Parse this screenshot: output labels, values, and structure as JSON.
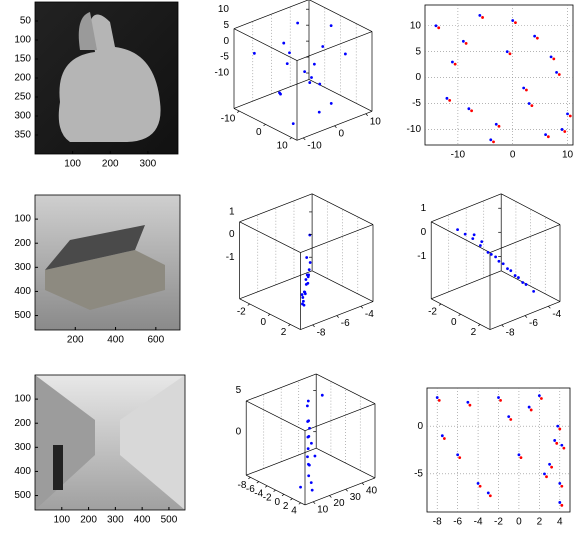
{
  "chart_data": [
    {
      "type": "image",
      "xlim": [
        0,
        380
      ],
      "ylim": [
        0,
        400
      ],
      "xticks": [
        100,
        200,
        300
      ],
      "yticks": [
        50,
        100,
        150,
        200,
        250,
        300,
        350
      ]
    },
    {
      "type": "scatter3d",
      "xlim": [
        -12,
        12
      ],
      "ylim": [
        -12,
        12
      ],
      "zlim": [
        -12,
        13
      ],
      "xticks": [
        -10,
        0,
        10
      ],
      "yticks": [
        -10,
        0,
        10
      ],
      "zticks": [
        -10,
        -5,
        0,
        5,
        10
      ],
      "color": "#0000ff",
      "x": [
        -8,
        -5,
        -2,
        1,
        4,
        7,
        9,
        -6,
        -3,
        0,
        3,
        6,
        -9,
        -4,
        2,
        5,
        8,
        -1
      ],
      "y": [
        5,
        -3,
        8,
        -7,
        2,
        -9,
        6,
        0,
        -5,
        9,
        -2,
        4,
        -8,
        7,
        -6,
        1,
        -4,
        3
      ],
      "z": [
        10,
        -8,
        4,
        12,
        -3,
        -10,
        7,
        0,
        -6,
        11,
        2,
        -9,
        5,
        -2,
        9,
        -11,
        3,
        -5
      ]
    },
    {
      "type": "scatter",
      "xlim": [
        -16,
        11
      ],
      "ylim": [
        -13,
        14
      ],
      "xticks": [
        -10,
        0,
        10
      ],
      "yticks": [
        -10,
        -5,
        0,
        5,
        10
      ],
      "grid": true,
      "series": [
        {
          "color": "#0000ff",
          "x": [
            -14,
            -11,
            -8,
            -6,
            -3,
            -1,
            2,
            4,
            6,
            8,
            10,
            -12,
            -9,
            -4,
            0,
            3,
            7,
            9
          ],
          "y": [
            10,
            3,
            -6,
            12,
            -9,
            5,
            -2,
            8,
            -11,
            1,
            -7,
            -4,
            7,
            -12,
            11,
            -5,
            4,
            -10
          ]
        },
        {
          "color": "#ff0000",
          "x": [
            -13.5,
            -10.5,
            -7.5,
            -5.5,
            -2.5,
            -0.5,
            2.5,
            4.5,
            6.5,
            8.5,
            10.5,
            -11.5,
            -8.5,
            -3.5,
            0.5,
            3.5,
            7.5,
            9.5
          ],
          "y": [
            9.6,
            2.6,
            -6.4,
            11.6,
            -9.4,
            4.6,
            -2.4,
            7.6,
            -11.4,
            0.6,
            -7.4,
            -4.4,
            6.6,
            -12.4,
            10.6,
            -5.4,
            3.6,
            -10.4
          ]
        }
      ]
    },
    {
      "type": "image",
      "xlim": [
        0,
        720
      ],
      "ylim": [
        0,
        560
      ],
      "xticks": [
        200,
        400,
        600
      ],
      "yticks": [
        100,
        200,
        300,
        400,
        500
      ]
    },
    {
      "type": "scatter3d",
      "xlim": [
        -3,
        3
      ],
      "ylim": [
        -9,
        -3
      ],
      "zlim": [
        -1.6,
        1.8
      ],
      "xticks": [
        -2,
        0,
        2
      ],
      "yticks": [
        -8,
        -6,
        -4
      ],
      "zticks": [
        -1,
        0,
        1
      ],
      "color": "#0000ff",
      "x": [
        -2,
        -1.5,
        -1,
        -0.5,
        0,
        0.5,
        1,
        1.5,
        2,
        -1.8,
        -0.8,
        0.2,
        1.2,
        2.2,
        -1.2,
        0.8,
        1.8,
        -0.2
      ],
      "y": [
        -4,
        -4.5,
        -5,
        -5.5,
        -6,
        -6.5,
        -7,
        -7.5,
        -8,
        -4.2,
        -5.2,
        -6.2,
        -7.2,
        -8.2,
        -4.8,
        -6.8,
        -7.8,
        -5.8
      ],
      "z": [
        -0.8,
        -0.9,
        -1,
        -0.7,
        -0.9,
        -1.1,
        -0.8,
        -1,
        -0.9,
        0.5,
        -1.2,
        -0.6,
        -1.3,
        -0.4,
        -1,
        -0.9,
        -0.7,
        0.2
      ]
    },
    {
      "type": "scatter3d",
      "xlim": [
        -3,
        3
      ],
      "ylim": [
        -9,
        -3
      ],
      "zlim": [
        -1.6,
        1.6
      ],
      "xticks": [
        -2,
        0,
        2
      ],
      "yticks": [
        -8,
        -6,
        -4
      ],
      "zticks": [
        -1,
        0,
        1
      ],
      "color": "#0000ff",
      "x": [
        -1.5,
        -1.2,
        -0.9,
        -0.6,
        -0.3,
        0,
        0.3,
        0.6,
        0.9,
        1.2,
        1.5,
        -1,
        -0.2,
        0.5,
        1.1,
        -0.7,
        0.1,
        0.8
      ],
      "y": [
        -8,
        -7.6,
        -7.2,
        -6.8,
        -6.4,
        -6,
        -5.6,
        -5.2,
        -4.8,
        -4.4,
        -4,
        -7,
        -6.2,
        -5.4,
        -4.6,
        -6.6,
        -5.8,
        -5
      ],
      "z": [
        1.4,
        1.2,
        1,
        0.7,
        0.4,
        0.2,
        -0.1,
        -0.4,
        -0.7,
        -1,
        -1.3,
        1.1,
        0.3,
        -0.3,
        -0.9,
        0.8,
        0,
        -0.6
      ]
    },
    {
      "type": "image",
      "xlim": [
        0,
        560
      ],
      "ylim": [
        0,
        560
      ],
      "xticks": [
        100,
        200,
        300,
        400,
        500
      ],
      "yticks": [
        100,
        200,
        300,
        400,
        500
      ]
    },
    {
      "type": "scatter3d",
      "xlim": [
        -9,
        5
      ],
      "ylim": [
        5,
        48
      ],
      "zlim": [
        -2,
        7
      ],
      "xticks": [
        -8,
        -6,
        -4,
        -2,
        0,
        2,
        4
      ],
      "yticks": [
        10,
        20,
        30,
        40
      ],
      "zticks": [
        0,
        5
      ],
      "color": "#0000ff",
      "x": [
        -8,
        -6,
        -4,
        -2,
        0,
        2,
        4,
        -7,
        -5,
        -3,
        -1,
        1,
        3,
        -6,
        -2,
        2,
        -4,
        0
      ],
      "y": [
        40,
        35,
        30,
        25,
        20,
        15,
        12,
        38,
        33,
        28,
        22,
        18,
        14,
        44,
        27,
        10,
        31,
        24
      ],
      "z": [
        4,
        3,
        2,
        1.5,
        0.5,
        0,
        -1,
        5,
        3.5,
        2.5,
        1,
        0.8,
        -0.5,
        5.5,
        2,
        -1,
        3,
        1.2
      ]
    },
    {
      "type": "scatter",
      "xlim": [
        -9,
        5
      ],
      "ylim": [
        -9,
        4
      ],
      "xticks": [
        -8,
        -6,
        -4,
        -2,
        0,
        2,
        4
      ],
      "yticks": [
        -5,
        0
      ],
      "grid": true,
      "series": [
        {
          "color": "#0000ff",
          "x": [
            -8,
            -7.5,
            -5,
            -4,
            -2,
            -1,
            0,
            1,
            2,
            3,
            4,
            4.2,
            3.8,
            4,
            -6,
            -3,
            2.5,
            3.5
          ],
          "y": [
            3,
            -1,
            2.5,
            -6,
            3,
            1,
            -3,
            2,
            3.2,
            -4,
            -6,
            -2,
            0,
            -8,
            -3,
            -7,
            -5,
            -1.5
          ]
        },
        {
          "color": "#ff0000",
          "x": [
            -7.8,
            -7.3,
            -4.8,
            -3.8,
            -1.8,
            -0.8,
            0.2,
            1.2,
            2.2,
            3.2,
            4.2,
            4.4,
            4,
            4.2,
            -5.8,
            -2.8,
            2.7,
            3.7
          ],
          "y": [
            2.7,
            -1.3,
            2.2,
            -6.3,
            2.7,
            0.7,
            -3.3,
            1.7,
            2.9,
            -4.3,
            -6.3,
            -2.3,
            -0.3,
            -8.3,
            -3.3,
            -7.3,
            -5.3,
            -1.8
          ]
        }
      ]
    }
  ]
}
